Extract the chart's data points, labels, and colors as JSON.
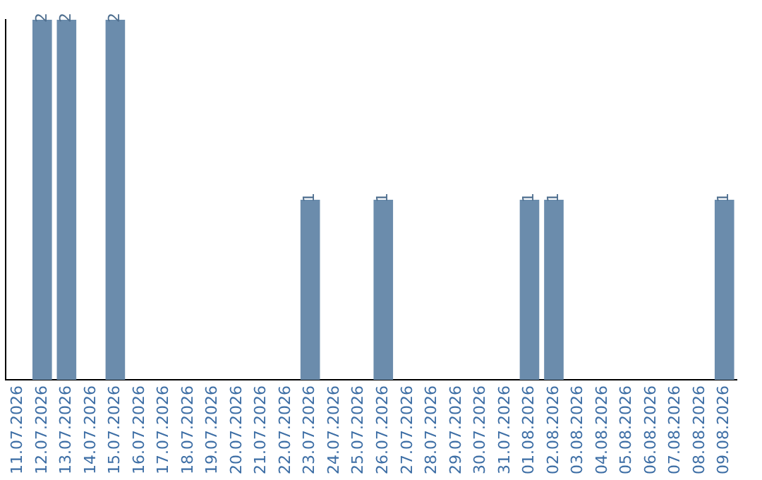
{
  "chart_data": {
    "type": "bar",
    "categories": [
      "11.07.2026",
      "12.07.2026",
      "13.07.2026",
      "14.07.2026",
      "15.07.2026",
      "16.07.2026",
      "17.07.2026",
      "18.07.2026",
      "19.07.2026",
      "20.07.2026",
      "21.07.2026",
      "22.07.2026",
      "23.07.2026",
      "24.07.2026",
      "25.07.2026",
      "26.07.2026",
      "27.07.2026",
      "28.07.2026",
      "29.07.2026",
      "30.07.2026",
      "31.07.2026",
      "01.08.2026",
      "02.08.2026",
      "03.08.2026",
      "04.08.2026",
      "05.08.2026",
      "06.08.2026",
      "07.08.2026",
      "08.08.2026",
      "09.08.2026"
    ],
    "values": [
      0,
      2,
      2,
      0,
      2,
      0,
      0,
      0,
      0,
      0,
      0,
      0,
      1,
      0,
      0,
      1,
      0,
      0,
      0,
      0,
      0,
      1,
      1,
      0,
      0,
      0,
      0,
      0,
      0,
      1
    ],
    "value_labels": [
      null,
      "2",
      "2",
      null,
      "2",
      null,
      null,
      null,
      null,
      null,
      null,
      null,
      "1",
      null,
      null,
      "1",
      null,
      null,
      null,
      null,
      null,
      "1",
      "1",
      null,
      null,
      null,
      null,
      null,
      null,
      "1"
    ],
    "color": "#6b8cac",
    "grid": false,
    "legend": false,
    "tick_labels": "x"
  }
}
